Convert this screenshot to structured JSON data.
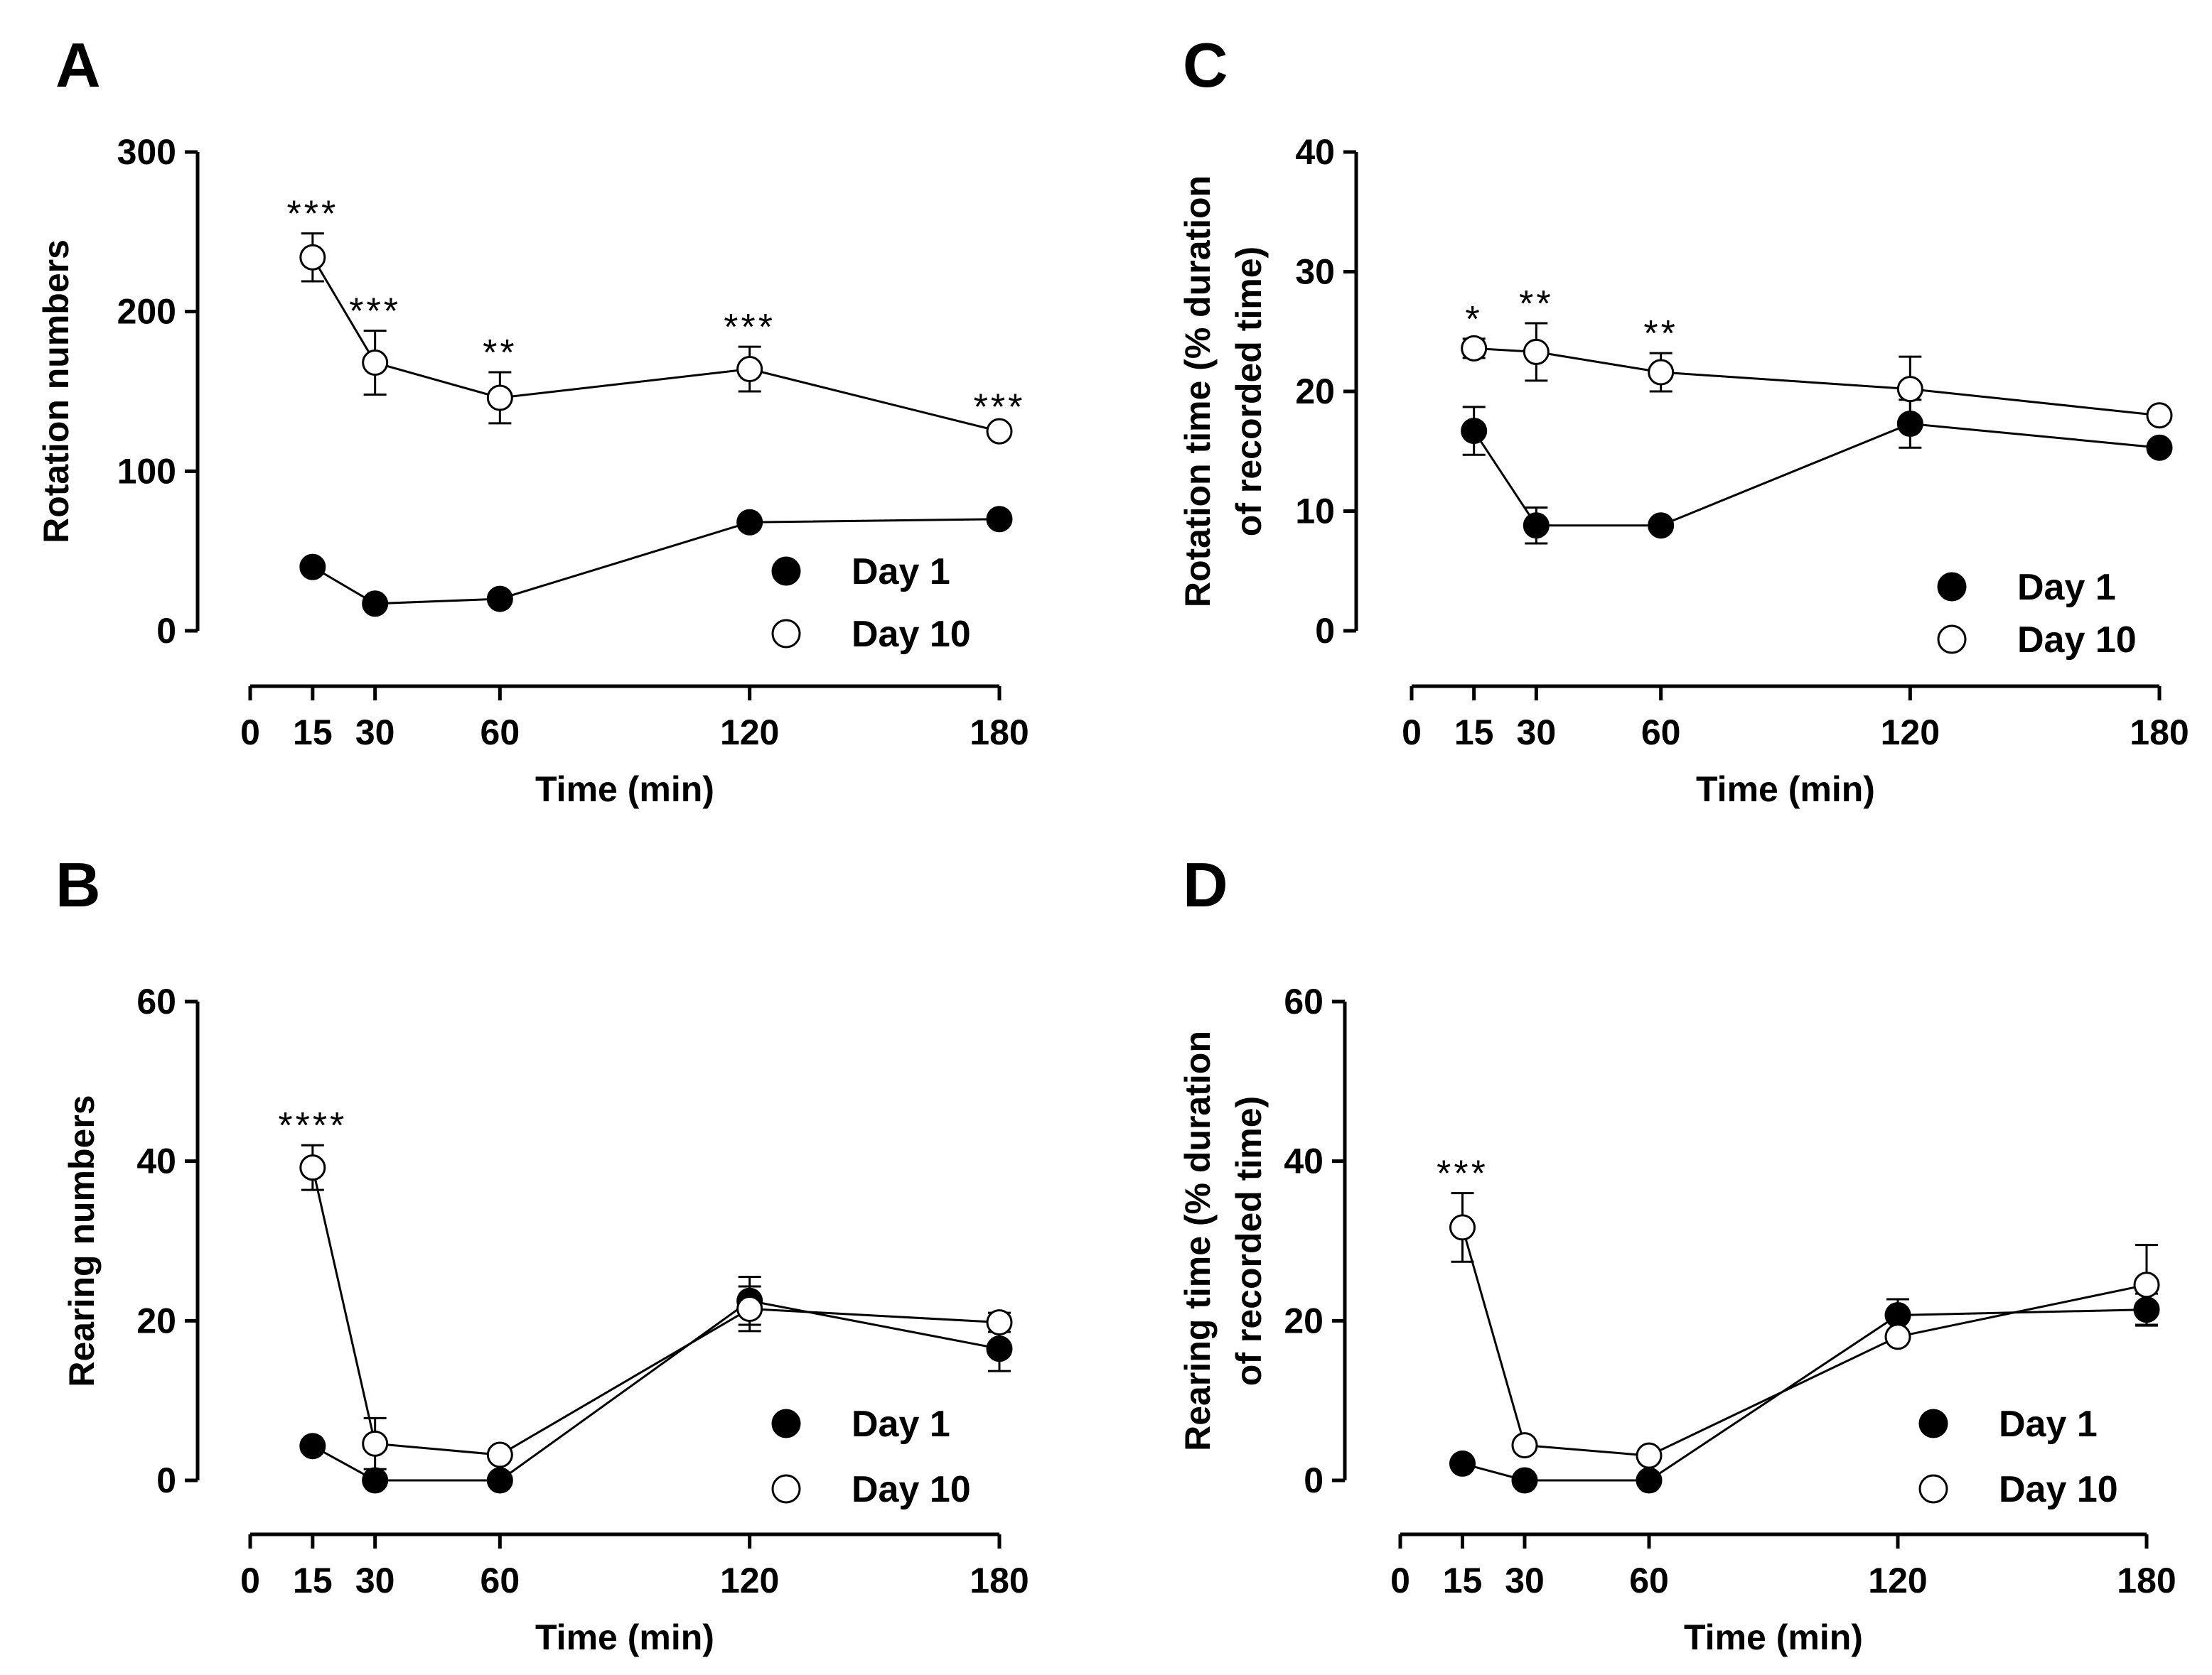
{
  "figure": {
    "colors": {
      "axis": "#000000",
      "day1_fill": "#000000",
      "day10_fill": "#ffffff"
    },
    "legend_markers": {
      "day1": "filled-circle",
      "day10": "open-circle"
    }
  },
  "chart_data": [
    {
      "id": "A",
      "type": "line",
      "panel_label": "A",
      "xlabel": "Time (min)",
      "ylabel_lines": [
        "Rotation numbers"
      ],
      "x_ticks": [
        0,
        15,
        30,
        60,
        120,
        180
      ],
      "xlim": [
        0,
        180
      ],
      "y_ticks": [
        0,
        100,
        200,
        300
      ],
      "ylim": [
        0,
        300
      ],
      "legend_position": "bottom-right",
      "series": [
        {
          "name": "Day 1",
          "marker": "filled",
          "x": [
            15,
            30,
            60,
            120,
            180
          ],
          "y": [
            40,
            17,
            20,
            68,
            70
          ],
          "err": [
            3,
            2,
            3,
            3,
            3
          ]
        },
        {
          "name": "Day 10",
          "marker": "open",
          "x": [
            15,
            30,
            60,
            120,
            180
          ],
          "y": [
            234,
            168,
            146,
            164,
            125
          ],
          "err": [
            15,
            20,
            16,
            14,
            3
          ]
        }
      ],
      "annotations": [
        {
          "x": 15,
          "text": "***"
        },
        {
          "x": 30,
          "text": "***"
        },
        {
          "x": 60,
          "text": "**"
        },
        {
          "x": 120,
          "text": "***"
        },
        {
          "x": 180,
          "text": "***"
        }
      ]
    },
    {
      "id": "C",
      "type": "line",
      "panel_label": "C",
      "xlabel": "Time (min)",
      "ylabel_lines": [
        "Rotation time (% duration",
        "of recorded time)"
      ],
      "x_ticks": [
        0,
        15,
        30,
        60,
        120,
        180
      ],
      "xlim": [
        0,
        180
      ],
      "y_ticks": [
        0,
        10,
        20,
        30,
        40
      ],
      "ylim": [
        0,
        40
      ],
      "legend_position": "bottom-right",
      "series": [
        {
          "name": "Day 1",
          "marker": "filled",
          "x": [
            15,
            30,
            60,
            120,
            180
          ],
          "y": [
            16.7,
            8.8,
            8.8,
            17.3,
            15.3
          ],
          "err": [
            2.0,
            1.5,
            0.4,
            2.0,
            0.4
          ]
        },
        {
          "name": "Day 10",
          "marker": "open",
          "x": [
            15,
            30,
            60,
            120,
            180
          ],
          "y": [
            23.6,
            23.3,
            21.6,
            20.2,
            18.0
          ],
          "err": [
            0.8,
            2.4,
            1.6,
            2.7,
            0.3
          ]
        }
      ],
      "annotations": [
        {
          "x": 15,
          "text": "*"
        },
        {
          "x": 30,
          "text": "**"
        },
        {
          "x": 60,
          "text": "**"
        }
      ]
    },
    {
      "id": "B",
      "type": "line",
      "panel_label": "B",
      "xlabel": "Time (min)",
      "ylabel_lines": [
        "Rearing numbers"
      ],
      "x_ticks": [
        0,
        15,
        30,
        60,
        120,
        180
      ],
      "xlim": [
        0,
        180
      ],
      "y_ticks": [
        0,
        20,
        40,
        60
      ],
      "ylim": [
        0,
        60
      ],
      "legend_position": "bottom-right",
      "series": [
        {
          "name": "Day 1",
          "marker": "filled",
          "x": [
            15,
            30,
            60,
            120,
            180
          ],
          "y": [
            4.3,
            0,
            0,
            22.5,
            16.5
          ],
          "err": [
            0.5,
            0,
            0,
            3.0,
            2.8
          ]
        },
        {
          "name": "Day 10",
          "marker": "open",
          "x": [
            15,
            30,
            60,
            120,
            180
          ],
          "y": [
            39.2,
            4.6,
            3.2,
            21.5,
            19.8
          ],
          "err": [
            2.8,
            3.2,
            0.6,
            2.8,
            1.2
          ]
        }
      ],
      "annotations": [
        {
          "x": 15,
          "text": "****"
        }
      ]
    },
    {
      "id": "D",
      "type": "line",
      "panel_label": "D",
      "xlabel": "Time (min)",
      "ylabel_lines": [
        "Rearing time (% duration",
        "of recorded time)"
      ],
      "x_ticks": [
        0,
        15,
        30,
        60,
        120,
        180
      ],
      "xlim": [
        0,
        180
      ],
      "y_ticks": [
        0,
        20,
        40,
        60
      ],
      "ylim": [
        0,
        60
      ],
      "legend_position": "bottom-right",
      "series": [
        {
          "name": "Day 1",
          "marker": "filled",
          "x": [
            15,
            30,
            60,
            120,
            180
          ],
          "y": [
            2.1,
            0,
            0,
            20.7,
            21.4
          ],
          "err": [
            0.4,
            0,
            0,
            2.0,
            2.0
          ]
        },
        {
          "name": "Day 10",
          "marker": "open",
          "x": [
            15,
            30,
            60,
            120,
            180
          ],
          "y": [
            31.7,
            4.4,
            3.1,
            18.0,
            24.5
          ],
          "err": [
            4.3,
            0.5,
            0.5,
            0.5,
            5.0
          ]
        }
      ],
      "annotations": [
        {
          "x": 15,
          "text": "***"
        }
      ]
    }
  ]
}
